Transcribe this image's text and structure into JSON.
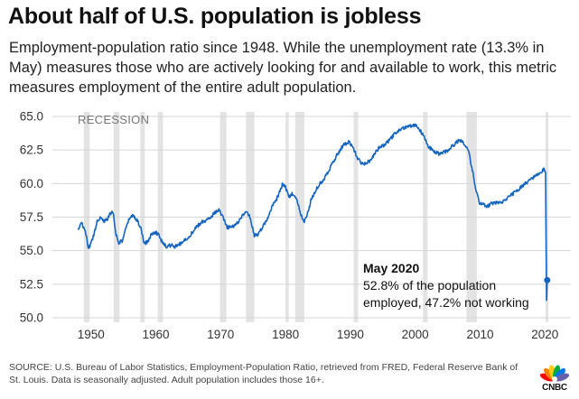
{
  "chart_data": {
    "type": "line",
    "title": "About half of U.S. population is jobless",
    "subtitle": "Employment-population ratio since 1948. While the unemployment rate (13.3% in May) measures those who are actively looking for and available to work, this metric measures employment of the entire adult population.",
    "xlim": [
      1946,
      2024
    ],
    "ylim": [
      50,
      65
    ],
    "x_ticks": [
      1950,
      1960,
      1970,
      1980,
      1990,
      2000,
      2010,
      2020
    ],
    "y_ticks": [
      50.0,
      52.5,
      55.0,
      57.5,
      60.0,
      62.5,
      65.0
    ],
    "y_tick_labels": [
      "50.0",
      "52.5",
      "55.0",
      "57.5",
      "60.0",
      "62.5",
      "65.0"
    ],
    "grid": "horizontal",
    "recession_label": "RECESSION",
    "recessions": [
      [
        1948.9,
        1949.8
      ],
      [
        1953.5,
        1954.4
      ],
      [
        1957.6,
        1958.3
      ],
      [
        1960.3,
        1961.1
      ],
      [
        1969.9,
        1970.9
      ],
      [
        1973.9,
        1975.2
      ],
      [
        1980.0,
        1980.5
      ],
      [
        1981.5,
        1982.9
      ],
      [
        1990.5,
        1991.2
      ],
      [
        2001.2,
        2001.9
      ],
      [
        2007.9,
        2009.5
      ],
      [
        2020.1,
        2020.4
      ]
    ],
    "series": [
      {
        "color": "#1565c0",
        "points": [
          [
            1948.0,
            56.6
          ],
          [
            1948.5,
            57.0
          ],
          [
            1948.9,
            56.8
          ],
          [
            1949.3,
            56.0
          ],
          [
            1949.6,
            55.2
          ],
          [
            1950.0,
            55.5
          ],
          [
            1950.6,
            56.5
          ],
          [
            1951.0,
            57.3
          ],
          [
            1951.5,
            57.5
          ],
          [
            1952.0,
            57.2
          ],
          [
            1952.5,
            57.3
          ],
          [
            1953.0,
            57.8
          ],
          [
            1953.4,
            57.9
          ],
          [
            1953.8,
            56.4
          ],
          [
            1954.2,
            55.6
          ],
          [
            1954.8,
            55.7
          ],
          [
            1955.3,
            56.5
          ],
          [
            1956.0,
            57.5
          ],
          [
            1956.6,
            57.6
          ],
          [
            1957.2,
            57.2
          ],
          [
            1957.8,
            56.5
          ],
          [
            1958.2,
            55.5
          ],
          [
            1958.8,
            55.7
          ],
          [
            1959.3,
            56.2
          ],
          [
            1960.0,
            56.4
          ],
          [
            1960.5,
            56.1
          ],
          [
            1961.0,
            55.6
          ],
          [
            1961.6,
            55.3
          ],
          [
            1962.3,
            55.4
          ],
          [
            1963.0,
            55.3
          ],
          [
            1963.8,
            55.5
          ],
          [
            1964.5,
            55.8
          ],
          [
            1965.2,
            56.1
          ],
          [
            1966.0,
            56.6
          ],
          [
            1967.0,
            57.1
          ],
          [
            1968.0,
            57.3
          ],
          [
            1969.0,
            57.8
          ],
          [
            1969.8,
            58.0
          ],
          [
            1970.4,
            57.4
          ],
          [
            1971.0,
            56.7
          ],
          [
            1971.8,
            56.8
          ],
          [
            1972.5,
            57.0
          ],
          [
            1973.3,
            57.6
          ],
          [
            1974.0,
            57.9
          ],
          [
            1974.6,
            57.4
          ],
          [
            1975.2,
            56.1
          ],
          [
            1975.8,
            56.2
          ],
          [
            1976.5,
            56.8
          ],
          [
            1977.3,
            57.4
          ],
          [
            1978.0,
            58.4
          ],
          [
            1978.8,
            59.0
          ],
          [
            1979.5,
            59.9
          ],
          [
            1980.0,
            59.7
          ],
          [
            1980.5,
            59.0
          ],
          [
            1981.0,
            59.2
          ],
          [
            1981.6,
            59.0
          ],
          [
            1982.3,
            57.8
          ],
          [
            1982.9,
            57.1
          ],
          [
            1983.5,
            57.9
          ],
          [
            1984.0,
            58.9
          ],
          [
            1985.0,
            59.8
          ],
          [
            1986.0,
            60.4
          ],
          [
            1987.0,
            61.3
          ],
          [
            1988.0,
            62.2
          ],
          [
            1989.0,
            62.9
          ],
          [
            1989.8,
            63.1
          ],
          [
            1990.5,
            62.6
          ],
          [
            1991.2,
            61.8
          ],
          [
            1991.8,
            61.5
          ],
          [
            1992.5,
            61.5
          ],
          [
            1993.2,
            61.8
          ],
          [
            1994.0,
            62.5
          ],
          [
            1995.0,
            62.8
          ],
          [
            1996.0,
            63.2
          ],
          [
            1997.0,
            63.8
          ],
          [
            1998.0,
            64.1
          ],
          [
            1999.0,
            64.3
          ],
          [
            2000.0,
            64.4
          ],
          [
            2000.6,
            64.1
          ],
          [
            2001.3,
            63.5
          ],
          [
            2002.0,
            62.8
          ],
          [
            2003.0,
            62.3
          ],
          [
            2003.8,
            62.2
          ],
          [
            2004.8,
            62.4
          ],
          [
            2005.8,
            62.8
          ],
          [
            2006.8,
            63.3
          ],
          [
            2007.5,
            63.0
          ],
          [
            2008.2,
            62.5
          ],
          [
            2008.8,
            61.0
          ],
          [
            2009.4,
            59.5
          ],
          [
            2009.9,
            58.5
          ],
          [
            2010.5,
            58.5
          ],
          [
            2011.0,
            58.3
          ],
          [
            2011.8,
            58.5
          ],
          [
            2012.5,
            58.6
          ],
          [
            2013.5,
            58.6
          ],
          [
            2014.5,
            59.0
          ],
          [
            2015.5,
            59.4
          ],
          [
            2016.5,
            59.8
          ],
          [
            2017.5,
            60.2
          ],
          [
            2018.5,
            60.5
          ],
          [
            2019.5,
            60.9
          ],
          [
            2019.9,
            61.1
          ],
          [
            2020.1,
            60.8
          ],
          [
            2020.25,
            51.3
          ],
          [
            2020.35,
            52.8
          ]
        ]
      }
    ],
    "highlight_point": [
      2020.35,
      52.8
    ],
    "annotation": {
      "title": "May 2020",
      "lines": [
        "52.8% of the population",
        "employed, 47.2% not working"
      ]
    }
  },
  "source": "SOURCE: U.S. Bureau of Labor Statistics, Employment-Population Ratio, retrieved from FRED, Federal Reserve Bank of St. Louis. Data is seasonally adjusted. Adult population includes those 16+.",
  "logo": {
    "text": "CNBC",
    "peacock_colors": [
      "#ff0000",
      "#ff7f00",
      "#fccc12",
      "#05ac3f",
      "#0478ea",
      "#6460aa"
    ]
  }
}
